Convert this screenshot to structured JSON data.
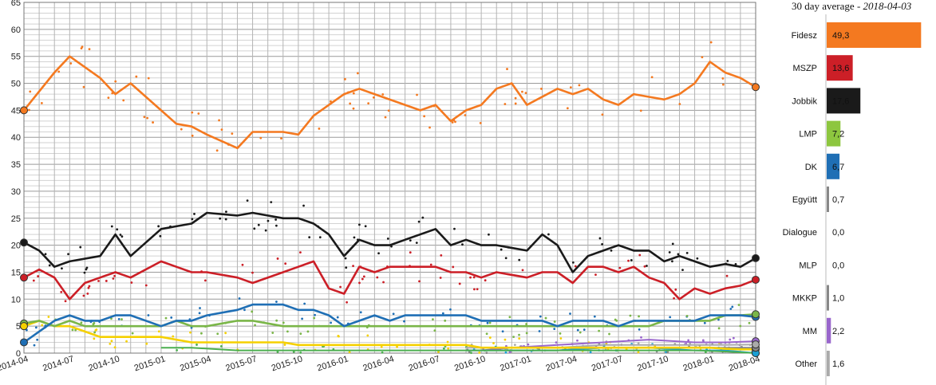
{
  "chart_data": [
    {
      "type": "line",
      "grid": true,
      "ylim": [
        0,
        65
      ],
      "yticks": [
        0,
        5,
        10,
        15,
        20,
        25,
        30,
        35,
        40,
        45,
        50,
        55,
        60,
        65
      ],
      "xlim": [
        "2014-04",
        "2018-04"
      ],
      "xticks": [
        "2014-04",
        "2014-07",
        "2014-10",
        "2015-01",
        "2015-04",
        "2015-07",
        "2015-10",
        "2016-01",
        "2016-04",
        "2016-07",
        "2016-10",
        "2017-01",
        "2017-04",
        "2017-07",
        "2017-10",
        "2018-01",
        "2018-04"
      ],
      "series": [
        {
          "color": "#f47920",
          "x": [
            "2014-04",
            "2014-06",
            "2014-07",
            "2014-09",
            "2014-10",
            "2014-11",
            "2015-01",
            "2015-02",
            "2015-03",
            "2015-04",
            "2015-06",
            "2015-07",
            "2015-09",
            "2015-10",
            "2015-11",
            "2016-01",
            "2016-02",
            "2016-03",
            "2016-05",
            "2016-06",
            "2016-07",
            "2016-08",
            "2016-09",
            "2016-10",
            "2016-11",
            "2016-12",
            "2017-01",
            "2017-03",
            "2017-04",
            "2017-05",
            "2017-06",
            "2017-07",
            "2017-08",
            "2017-09",
            "2017-10",
            "2017-11",
            "2017-12",
            "2018-01",
            "2018-02",
            "2018-03",
            "2018-04"
          ],
          "y": [
            45,
            52,
            55,
            51,
            48,
            50,
            45,
            42.5,
            42,
            40.5,
            38,
            41,
            41,
            40.5,
            44,
            48,
            49,
            48,
            46,
            45,
            46,
            43,
            45,
            46,
            49,
            50,
            46,
            49,
            48,
            49,
            47,
            46,
            48,
            47.5,
            47,
            48,
            50,
            54,
            52,
            51,
            49.3
          ]
        },
        {
          "color": "#1a1a1a",
          "x": [
            "2014-04",
            "2014-05",
            "2014-06",
            "2014-07",
            "2014-09",
            "2014-10",
            "2014-11",
            "2015-01",
            "2015-02",
            "2015-03",
            "2015-04",
            "2015-06",
            "2015-07",
            "2015-09",
            "2015-10",
            "2015-11",
            "2015-12",
            "2016-01",
            "2016-02",
            "2016-03",
            "2016-04",
            "2016-05",
            "2016-07",
            "2016-08",
            "2016-09",
            "2016-10",
            "2016-11",
            "2017-01",
            "2017-02",
            "2017-03",
            "2017-04",
            "2017-05",
            "2017-06",
            "2017-07",
            "2017-08",
            "2017-09",
            "2017-10",
            "2017-11",
            "2017-12",
            "2018-01",
            "2018-02",
            "2018-03",
            "2018-04"
          ],
          "y": [
            20.5,
            19,
            16,
            17,
            18,
            22,
            18,
            23,
            23.5,
            24,
            26,
            25.5,
            26,
            25,
            25,
            24,
            22,
            18,
            21,
            20,
            20,
            21,
            23,
            20,
            21,
            20,
            20,
            19,
            22,
            20,
            15,
            18,
            19,
            20,
            19,
            19,
            17,
            18,
            17,
            16,
            16.5,
            16,
            17.6
          ]
        },
        {
          "color": "#cc1f27",
          "x": [
            "2014-04",
            "2014-05",
            "2014-06",
            "2014-07",
            "2014-08",
            "2014-09",
            "2014-10",
            "2014-11",
            "2015-01",
            "2015-02",
            "2015-03",
            "2015-04",
            "2015-06",
            "2015-07",
            "2015-09",
            "2015-10",
            "2015-11",
            "2015-12",
            "2016-01",
            "2016-02",
            "2016-03",
            "2016-04",
            "2016-05",
            "2016-07",
            "2016-08",
            "2016-09",
            "2016-10",
            "2016-11",
            "2017-01",
            "2017-02",
            "2017-03",
            "2017-04",
            "2017-05",
            "2017-06",
            "2017-07",
            "2017-08",
            "2017-09",
            "2017-10",
            "2017-11",
            "2017-12",
            "2018-01",
            "2018-02",
            "2018-03",
            "2018-04"
          ],
          "y": [
            14,
            15.5,
            14,
            10,
            13,
            14,
            15,
            14,
            17,
            16,
            15,
            15,
            14,
            13,
            15,
            16,
            17,
            12,
            11,
            16,
            15,
            16,
            16,
            16,
            15,
            15,
            14,
            15,
            14,
            15,
            15,
            13,
            16,
            16,
            15,
            16,
            14,
            13,
            10,
            12,
            11,
            12,
            12.5,
            13.6
          ]
        },
        {
          "color": "#1f6fb5",
          "x": [
            "2014-04",
            "2014-05",
            "2014-06",
            "2014-07",
            "2014-08",
            "2014-09",
            "2014-10",
            "2014-11",
            "2015-01",
            "2015-02",
            "2015-03",
            "2015-04",
            "2015-06",
            "2015-07",
            "2015-09",
            "2015-10",
            "2015-11",
            "2015-12",
            "2016-01",
            "2016-02",
            "2016-03",
            "2016-04",
            "2016-05",
            "2016-07",
            "2016-08",
            "2016-09",
            "2016-10",
            "2016-11",
            "2017-01",
            "2017-02",
            "2017-03",
            "2017-04",
            "2017-05",
            "2017-06",
            "2017-07",
            "2017-08",
            "2017-09",
            "2017-10",
            "2017-11",
            "2017-12",
            "2018-01",
            "2018-02",
            "2018-03",
            "2018-04"
          ],
          "y": [
            2,
            4,
            6,
            7,
            6,
            6,
            7,
            7,
            5,
            6,
            6,
            7,
            8,
            9,
            9,
            8,
            8,
            7,
            5,
            6,
            7,
            6,
            7,
            7,
            7,
            7,
            6,
            6,
            6,
            6,
            5,
            6,
            6,
            6,
            5,
            6,
            6,
            6,
            6,
            6,
            7,
            7,
            7,
            6.7
          ]
        },
        {
          "color": "#7ab648",
          "x": [
            "2014-04",
            "2014-05",
            "2014-06",
            "2014-07",
            "2014-08",
            "2014-09",
            "2014-10",
            "2014-11",
            "2015-01",
            "2015-02",
            "2015-03",
            "2015-04",
            "2015-06",
            "2015-07",
            "2015-09",
            "2015-10",
            "2015-11",
            "2015-12",
            "2016-01",
            "2016-02",
            "2016-03",
            "2016-04",
            "2016-05",
            "2016-07",
            "2016-08",
            "2016-09",
            "2016-10",
            "2016-11",
            "2017-01",
            "2017-02",
            "2017-03",
            "2017-04",
            "2017-05",
            "2017-06",
            "2017-07",
            "2017-08",
            "2017-09",
            "2017-10",
            "2017-11",
            "2017-12",
            "2018-01",
            "2018-02",
            "2018-03",
            "2018-04"
          ],
          "y": [
            5.5,
            6,
            5,
            6,
            5,
            5,
            5,
            5,
            5,
            6,
            5,
            5,
            6,
            6,
            5,
            5,
            5,
            5,
            5,
            5,
            5,
            5,
            5,
            5,
            5,
            5,
            5,
            5,
            5,
            5,
            5,
            5,
            5,
            5,
            5,
            5,
            5,
            6,
            6,
            6,
            6,
            7,
            7,
            7.2
          ]
        },
        {
          "color": "#f5d000",
          "x": [
            "2014-04",
            "2014-05",
            "2014-06",
            "2014-07",
            "2014-08",
            "2014-09",
            "2014-10",
            "2014-11",
            "2015-01",
            "2015-02",
            "2015-03",
            "2015-04",
            "2015-06",
            "2015-07",
            "2015-09",
            "2015-10",
            "2015-11",
            "2015-12",
            "2016-01",
            "2016-02",
            "2016-03",
            "2016-04",
            "2016-05",
            "2016-07",
            "2016-08",
            "2016-09",
            "2016-10",
            "2016-11",
            "2017-01",
            "2017-02",
            "2017-03",
            "2017-04",
            "2017-05",
            "2017-06",
            "2017-07",
            "2017-08",
            "2017-09",
            "2017-10",
            "2017-11",
            "2017-12",
            "2018-01",
            "2018-02",
            "2018-03",
            "2018-04"
          ],
          "y": [
            5,
            6,
            5,
            5,
            4,
            3,
            3,
            3,
            3,
            2.5,
            2,
            2,
            2,
            2,
            2,
            1.5,
            1.5,
            1.5,
            1.5,
            1.5,
            1.5,
            1.5,
            1.5,
            1.5,
            1.5,
            1.5,
            1,
            1,
            1,
            1,
            1,
            1,
            1,
            1,
            1,
            1,
            1,
            1,
            1,
            1,
            1,
            0.8,
            0.7,
            0.7
          ]
        },
        {
          "color": "#4caf50",
          "x": [
            "2015-01",
            "2015-03",
            "2015-06",
            "2015-09",
            "2015-12",
            "2016-03",
            "2016-06",
            "2016-09",
            "2016-12",
            "2017-03",
            "2017-06",
            "2017-09",
            "2017-12",
            "2018-02",
            "2018-04"
          ],
          "y": [
            1,
            1,
            0.5,
            0.5,
            0.5,
            0.5,
            0.5,
            0.5,
            0.5,
            0.5,
            0.5,
            0.5,
            0.5,
            0.3,
            0.0
          ]
        },
        {
          "color": "#1a9fd4",
          "x": [
            "2016-09",
            "2016-12",
            "2017-03",
            "2017-06",
            "2017-09",
            "2017-12",
            "2018-02",
            "2018-04"
          ],
          "y": [
            0.5,
            0.5,
            0.5,
            1,
            1,
            0.5,
            0.5,
            0.0
          ]
        },
        {
          "color": "#888888",
          "x": [
            "2016-09",
            "2016-12",
            "2017-03",
            "2017-06",
            "2017-09",
            "2017-12",
            "2018-02",
            "2018-04"
          ],
          "y": [
            0.5,
            0.5,
            0.5,
            1,
            1,
            1,
            1,
            1.0
          ]
        },
        {
          "color": "#9966cc",
          "x": [
            "2016-10",
            "2016-12",
            "2017-03",
            "2017-06",
            "2017-09",
            "2017-12",
            "2018-02",
            "2018-04"
          ],
          "y": [
            0.5,
            1,
            1.5,
            2,
            2.5,
            2,
            2,
            2.2
          ]
        },
        {
          "color": "#aaaaaa",
          "x": [
            "2016-09",
            "2016-12",
            "2017-03",
            "2017-06",
            "2017-09",
            "2017-12",
            "2018-02",
            "2018-04"
          ],
          "y": [
            1,
            1,
            1,
            1.5,
            1.5,
            1.5,
            1.5,
            1.6
          ]
        }
      ]
    },
    {
      "type": "bar",
      "orientation": "horizontal",
      "title": "30 day average",
      "subtitle": "2018-04-03",
      "xlim": [
        0,
        55
      ],
      "categories": [
        "Fidesz",
        "MSZP",
        "Jobbik",
        "LMP",
        "DK",
        "Együtt",
        "Dialogue",
        "MLP",
        "MKKP",
        "MM",
        "Other"
      ],
      "values": [
        49.3,
        13.6,
        17.6,
        7.2,
        6.7,
        0.7,
        0.0,
        0.0,
        1.0,
        2.2,
        1.6
      ],
      "value_labels": [
        "49,3",
        "13,6",
        "17,6",
        "7,2",
        "6,7",
        "0,7",
        "0,0",
        "0,0",
        "1,0",
        "2,2",
        "1,6"
      ],
      "colors": [
        "#f47920",
        "#cc1f27",
        "#1a1a1a",
        "#8dc63f",
        "#1f6fb5",
        "#888888",
        "#4caf50",
        "#1a9fd4",
        "#888888",
        "#9966cc",
        "#aaaaaa"
      ]
    }
  ]
}
